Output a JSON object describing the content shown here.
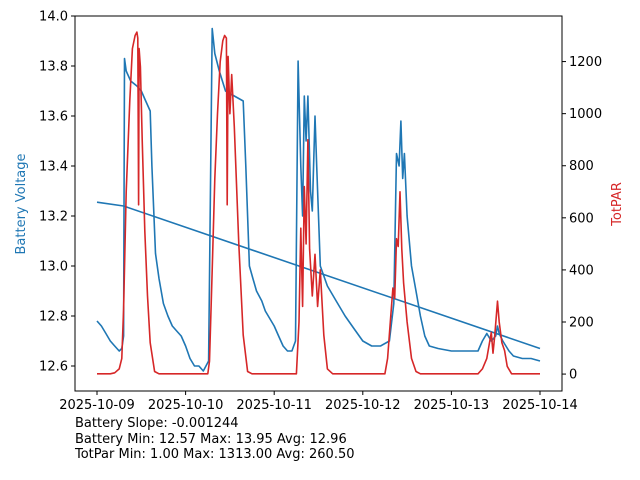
{
  "chart_data": {
    "type": "line",
    "x_ticks": [
      "2025-10-09",
      "2025-10-10",
      "2025-10-11",
      "2025-10-12",
      "2025-10-13",
      "2025-10-14"
    ],
    "x_range": [
      0,
      5
    ],
    "left_axis": {
      "label": "Battery Voltage",
      "color": "#1f77b4",
      "range": [
        12.5,
        14.0
      ],
      "ticks": [
        12.6,
        12.8,
        13.0,
        13.2,
        13.4,
        13.6,
        13.8,
        14.0
      ],
      "tick_labels": [
        "12.6",
        "12.8",
        "13.0",
        "13.2",
        "13.4",
        "13.6",
        "13.8",
        "14.0"
      ]
    },
    "right_axis": {
      "label": "TotPAR",
      "color": "#d62728",
      "range": [
        -65,
        1375
      ],
      "ticks": [
        0,
        200,
        400,
        600,
        800,
        1000,
        1200
      ],
      "tick_labels": [
        "0",
        "200",
        "400",
        "600",
        "800",
        "1000",
        "1200"
      ]
    },
    "series": [
      {
        "name": "Battery Voltage",
        "axis": "left",
        "color": "#1f77b4",
        "points": [
          [
            0.0,
            12.78
          ],
          [
            0.05,
            12.76
          ],
          [
            0.1,
            12.73
          ],
          [
            0.15,
            12.7
          ],
          [
            0.2,
            12.68
          ],
          [
            0.25,
            12.66
          ],
          [
            0.28,
            12.67
          ],
          [
            0.3,
            12.72
          ],
          [
            0.31,
            13.83
          ],
          [
            0.33,
            13.78
          ],
          [
            0.38,
            13.74
          ],
          [
            0.45,
            13.72
          ],
          [
            0.5,
            13.7
          ],
          [
            0.55,
            13.66
          ],
          [
            0.6,
            13.62
          ],
          [
            0.62,
            13.4
          ],
          [
            0.66,
            13.05
          ],
          [
            0.7,
            12.95
          ],
          [
            0.75,
            12.85
          ],
          [
            0.8,
            12.8
          ],
          [
            0.85,
            12.76
          ],
          [
            0.9,
            12.74
          ],
          [
            0.95,
            12.72
          ],
          [
            1.0,
            12.68
          ],
          [
            1.05,
            12.63
          ],
          [
            1.1,
            12.6
          ],
          [
            1.15,
            12.6
          ],
          [
            1.2,
            12.58
          ],
          [
            1.26,
            12.62
          ],
          [
            1.3,
            13.95
          ],
          [
            1.33,
            13.85
          ],
          [
            1.38,
            13.78
          ],
          [
            1.45,
            13.7
          ],
          [
            1.55,
            13.68
          ],
          [
            1.65,
            13.66
          ],
          [
            1.68,
            13.4
          ],
          [
            1.72,
            13.0
          ],
          [
            1.76,
            12.95
          ],
          [
            1.8,
            12.9
          ],
          [
            1.86,
            12.86
          ],
          [
            1.9,
            12.82
          ],
          [
            2.0,
            12.76
          ],
          [
            2.05,
            12.72
          ],
          [
            2.1,
            12.68
          ],
          [
            2.15,
            12.66
          ],
          [
            2.2,
            12.66
          ],
          [
            2.24,
            12.7
          ],
          [
            2.27,
            13.82
          ],
          [
            2.3,
            13.4
          ],
          [
            2.32,
            13.2
          ],
          [
            2.34,
            13.68
          ],
          [
            2.36,
            13.5
          ],
          [
            2.38,
            13.68
          ],
          [
            2.41,
            13.3
          ],
          [
            2.43,
            13.22
          ],
          [
            2.46,
            13.6
          ],
          [
            2.48,
            13.4
          ],
          [
            2.52,
            13.0
          ],
          [
            2.6,
            12.92
          ],
          [
            2.7,
            12.86
          ],
          [
            2.8,
            12.8
          ],
          [
            2.9,
            12.75
          ],
          [
            3.0,
            12.7
          ],
          [
            3.1,
            12.68
          ],
          [
            3.2,
            12.68
          ],
          [
            3.3,
            12.7
          ],
          [
            3.35,
            12.85
          ],
          [
            3.38,
            13.45
          ],
          [
            3.41,
            13.4
          ],
          [
            3.43,
            13.58
          ],
          [
            3.45,
            13.35
          ],
          [
            3.47,
            13.45
          ],
          [
            3.5,
            13.2
          ],
          [
            3.55,
            13.0
          ],
          [
            3.6,
            12.9
          ],
          [
            3.65,
            12.8
          ],
          [
            3.7,
            12.72
          ],
          [
            3.75,
            12.68
          ],
          [
            3.85,
            12.67
          ],
          [
            4.0,
            12.66
          ],
          [
            4.15,
            12.66
          ],
          [
            4.3,
            12.66
          ],
          [
            4.35,
            12.7
          ],
          [
            4.4,
            12.73
          ],
          [
            4.45,
            12.7
          ],
          [
            4.5,
            12.72
          ],
          [
            4.52,
            12.76
          ],
          [
            4.54,
            12.73
          ],
          [
            4.58,
            12.7
          ],
          [
            4.65,
            12.66
          ],
          [
            4.7,
            12.64
          ],
          [
            4.8,
            12.63
          ],
          [
            4.9,
            12.63
          ],
          [
            5.0,
            12.62
          ]
        ]
      },
      {
        "name": "Battery Trend",
        "axis": "left",
        "color": "#1f77b4",
        "points": [
          [
            0.0,
            13.255
          ],
          [
            0.3,
            13.24
          ],
          [
            5.0,
            12.67
          ]
        ]
      },
      {
        "name": "TotPAR",
        "axis": "right",
        "color": "#d62728",
        "points": [
          [
            0.0,
            1
          ],
          [
            0.15,
            1
          ],
          [
            0.2,
            5
          ],
          [
            0.25,
            20
          ],
          [
            0.28,
            60
          ],
          [
            0.3,
            250
          ],
          [
            0.33,
            700
          ],
          [
            0.37,
            1050
          ],
          [
            0.4,
            1250
          ],
          [
            0.43,
            1300
          ],
          [
            0.45,
            1313
          ],
          [
            0.46,
            1290
          ],
          [
            0.47,
            650
          ],
          [
            0.475,
            1250
          ],
          [
            0.49,
            1180
          ],
          [
            0.51,
            900
          ],
          [
            0.54,
            550
          ],
          [
            0.57,
            300
          ],
          [
            0.6,
            120
          ],
          [
            0.65,
            10
          ],
          [
            0.7,
            1
          ],
          [
            1.25,
            1
          ],
          [
            1.27,
            50
          ],
          [
            1.3,
            400
          ],
          [
            1.33,
            750
          ],
          [
            1.36,
            1000
          ],
          [
            1.39,
            1200
          ],
          [
            1.42,
            1280
          ],
          [
            1.44,
            1300
          ],
          [
            1.46,
            1290
          ],
          [
            1.47,
            650
          ],
          [
            1.48,
            1220
          ],
          [
            1.5,
            1000
          ],
          [
            1.52,
            1150
          ],
          [
            1.55,
            950
          ],
          [
            1.6,
            500
          ],
          [
            1.65,
            150
          ],
          [
            1.7,
            10
          ],
          [
            1.75,
            1
          ],
          [
            2.25,
            1
          ],
          [
            2.28,
            200
          ],
          [
            2.3,
            560
          ],
          [
            2.32,
            260
          ],
          [
            2.34,
            720
          ],
          [
            2.36,
            500
          ],
          [
            2.38,
            900
          ],
          [
            2.4,
            480
          ],
          [
            2.43,
            300
          ],
          [
            2.46,
            460
          ],
          [
            2.49,
            260
          ],
          [
            2.52,
            400
          ],
          [
            2.56,
            150
          ],
          [
            2.6,
            20
          ],
          [
            2.66,
            1
          ],
          [
            3.25,
            1
          ],
          [
            3.28,
            60
          ],
          [
            3.31,
            200
          ],
          [
            3.34,
            330
          ],
          [
            3.36,
            290
          ],
          [
            3.38,
            520
          ],
          [
            3.4,
            490
          ],
          [
            3.42,
            700
          ],
          [
            3.44,
            480
          ],
          [
            3.46,
            350
          ],
          [
            3.5,
            200
          ],
          [
            3.55,
            60
          ],
          [
            3.6,
            10
          ],
          [
            3.65,
            1
          ],
          [
            4.3,
            1
          ],
          [
            4.35,
            20
          ],
          [
            4.4,
            60
          ],
          [
            4.43,
            120
          ],
          [
            4.45,
            160
          ],
          [
            4.47,
            80
          ],
          [
            4.49,
            150
          ],
          [
            4.52,
            280
          ],
          [
            4.54,
            200
          ],
          [
            4.57,
            120
          ],
          [
            4.6,
            90
          ],
          [
            4.63,
            30
          ],
          [
            4.68,
            1
          ],
          [
            5.0,
            1
          ]
        ]
      }
    ],
    "annotations": [
      "Battery Slope: -0.001244",
      "Battery Min: 12.57 Max: 13.95 Avg: 12.96",
      "TotPar Min: 1.00 Max: 1313.00 Avg: 260.50"
    ]
  }
}
